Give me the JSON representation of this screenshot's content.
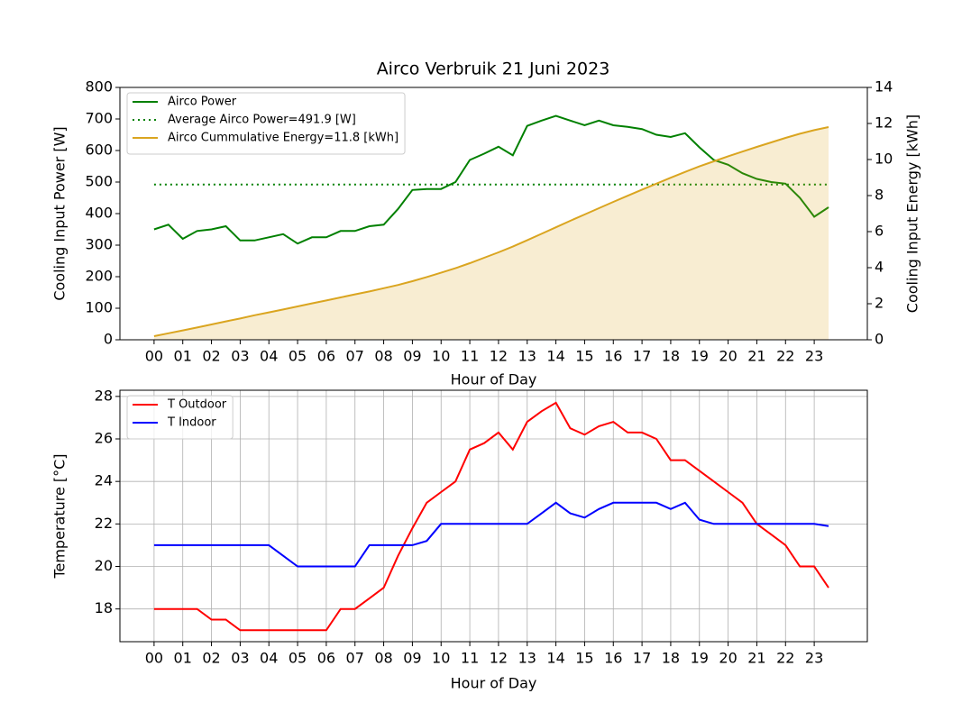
{
  "chart_data": [
    {
      "type": "line",
      "title": "Airco Verbruik 21 Juni 2023",
      "xlabel": "Hour of Day",
      "ylabel": "Cooling Input Power [W]",
      "y2label": "Cooling Input Energy [kWh]",
      "x": [
        0,
        0.5,
        1,
        1.5,
        2,
        2.5,
        3,
        3.5,
        4,
        4.5,
        5,
        5.5,
        6,
        6.5,
        7,
        7.5,
        8,
        8.5,
        9,
        9.5,
        10,
        10.5,
        11,
        11.5,
        12,
        12.5,
        13,
        13.5,
        14,
        14.5,
        15,
        15.5,
        16,
        16.5,
        17,
        17.5,
        18,
        18.5,
        19,
        19.5,
        20,
        20.5,
        21,
        21.5,
        22,
        22.5,
        23,
        23.5
      ],
      "xlim": [
        -1.19,
        24.85
      ],
      "xticks": [
        {
          "value": 0,
          "label": "00"
        },
        {
          "value": 1,
          "label": "01"
        },
        {
          "value": 2,
          "label": "02"
        },
        {
          "value": 3,
          "label": "03"
        },
        {
          "value": 4,
          "label": "04"
        },
        {
          "value": 5,
          "label": "05"
        },
        {
          "value": 6,
          "label": "06"
        },
        {
          "value": 7,
          "label": "07"
        },
        {
          "value": 8,
          "label": "08"
        },
        {
          "value": 9,
          "label": "09"
        },
        10,
        11,
        12,
        13,
        14,
        15,
        16,
        17,
        18,
        19,
        20,
        21,
        22,
        23
      ],
      "ylim": [
        0,
        800
      ],
      "yticks": [
        0,
        100,
        200,
        300,
        400,
        500,
        600,
        700,
        800
      ],
      "y2lim": [
        0,
        14
      ],
      "y2ticks": [
        0,
        2,
        4,
        6,
        8,
        10,
        12,
        14
      ],
      "grid": false,
      "legend": "upper left",
      "series": [
        {
          "name": "Airco Power",
          "color": "#008000",
          "linestyle": "solid",
          "values": [
            350,
            365,
            320,
            345,
            350,
            360,
            315,
            315,
            325,
            335,
            305,
            325,
            325,
            345,
            345,
            360,
            365,
            415,
            475,
            478,
            478,
            500,
            570,
            590,
            612,
            585,
            678,
            695,
            710,
            695,
            680,
            695,
            680,
            675,
            668,
            650,
            643,
            655,
            610,
            570,
            555,
            528,
            510,
            500,
            495,
            450,
            390,
            420
          ]
        },
        {
          "name": "Average Airco Power=491.9 [W]",
          "color": "#008000",
          "linestyle": "dotted",
          "values": [
            491.9,
            491.9,
            491.9,
            491.9,
            491.9,
            491.9,
            491.9,
            491.9,
            491.9,
            491.9,
            491.9,
            491.9,
            491.9,
            491.9,
            491.9,
            491.9,
            491.9,
            491.9,
            491.9,
            491.9,
            491.9,
            491.9,
            491.9,
            491.9,
            491.9,
            491.9,
            491.9,
            491.9,
            491.9,
            491.9,
            491.9,
            491.9,
            491.9,
            491.9,
            491.9,
            491.9,
            491.9,
            491.9,
            491.9,
            491.9,
            491.9,
            491.9,
            491.9,
            491.9,
            491.9,
            491.9,
            491.9,
            491.9
          ]
        },
        {
          "name": "Airco Cummulative Energy=11.8 [kWh]",
          "color": "#daa520",
          "linestyle": "solid",
          "axis": "y2",
          "fill": true,
          "values": [
            0.2,
            0.36,
            0.52,
            0.68,
            0.85,
            1.02,
            1.18,
            1.36,
            1.52,
            1.68,
            1.85,
            2.02,
            2.18,
            2.35,
            2.52,
            2.68,
            2.86,
            3.04,
            3.25,
            3.48,
            3.72,
            3.97,
            4.25,
            4.55,
            4.85,
            5.17,
            5.52,
            5.88,
            6.24,
            6.6,
            6.95,
            7.3,
            7.65,
            7.99,
            8.33,
            8.66,
            8.99,
            9.31,
            9.62,
            9.9,
            10.18,
            10.44,
            10.7,
            10.95,
            11.2,
            11.43,
            11.63,
            11.8
          ]
        }
      ]
    },
    {
      "type": "line",
      "xlabel": "Hour of Day",
      "ylabel": "Temperature [°C]",
      "x": [
        0,
        0.5,
        1,
        1.5,
        2,
        2.5,
        3,
        3.5,
        4,
        4.5,
        5,
        5.5,
        6,
        6.5,
        7,
        7.5,
        8,
        8.5,
        9,
        9.5,
        10,
        10.5,
        11,
        11.5,
        12,
        12.5,
        13,
        13.5,
        14,
        14.5,
        15,
        15.5,
        16,
        16.5,
        17,
        17.5,
        18,
        18.5,
        19,
        19.5,
        20,
        20.5,
        21,
        21.5,
        22,
        22.5,
        23,
        23.5
      ],
      "xlim": [
        -1.19,
        24.85
      ],
      "xticks": [
        {
          "value": 0,
          "label": "00"
        },
        {
          "value": 1,
          "label": "01"
        },
        {
          "value": 2,
          "label": "02"
        },
        {
          "value": 3,
          "label": "03"
        },
        {
          "value": 4,
          "label": "04"
        },
        {
          "value": 5,
          "label": "05"
        },
        {
          "value": 6,
          "label": "06"
        },
        {
          "value": 7,
          "label": "07"
        },
        {
          "value": 8,
          "label": "08"
        },
        {
          "value": 9,
          "label": "09"
        },
        10,
        11,
        12,
        13,
        14,
        15,
        16,
        17,
        18,
        19,
        20,
        21,
        22,
        23
      ],
      "ylim": [
        16.46,
        28.29
      ],
      "yticks": [
        18,
        20,
        22,
        24,
        26,
        28
      ],
      "grid": true,
      "legend": "upper left",
      "series": [
        {
          "name": "T Outdoor",
          "color": "#ff0000",
          "linestyle": "solid",
          "values": [
            18,
            18,
            18,
            18,
            17.5,
            17.5,
            17,
            17,
            17,
            17,
            17,
            17,
            17,
            18,
            18,
            18.5,
            19,
            20.5,
            21.8,
            23,
            23.5,
            24,
            25.5,
            25.8,
            26.3,
            25.5,
            26.8,
            27.3,
            27.7,
            26.5,
            26.2,
            26.6,
            26.8,
            26.3,
            26.3,
            26,
            25,
            25,
            24.5,
            24,
            23.5,
            23,
            22,
            21.5,
            21,
            20,
            20,
            19
          ]
        },
        {
          "name": "T Indoor",
          "color": "#0000ff",
          "linestyle": "solid",
          "values": [
            21,
            21,
            21,
            21,
            21,
            21,
            21,
            21,
            21,
            20.5,
            20,
            20,
            20,
            20,
            20,
            21,
            21,
            21,
            21,
            21.2,
            22,
            22,
            22,
            22,
            22,
            22,
            22,
            22.5,
            23,
            22.5,
            22.3,
            22.7,
            23,
            23,
            23,
            23,
            22.7,
            23,
            22.2,
            22,
            22,
            22,
            22,
            22,
            22,
            22,
            22,
            21.9
          ]
        }
      ]
    }
  ]
}
